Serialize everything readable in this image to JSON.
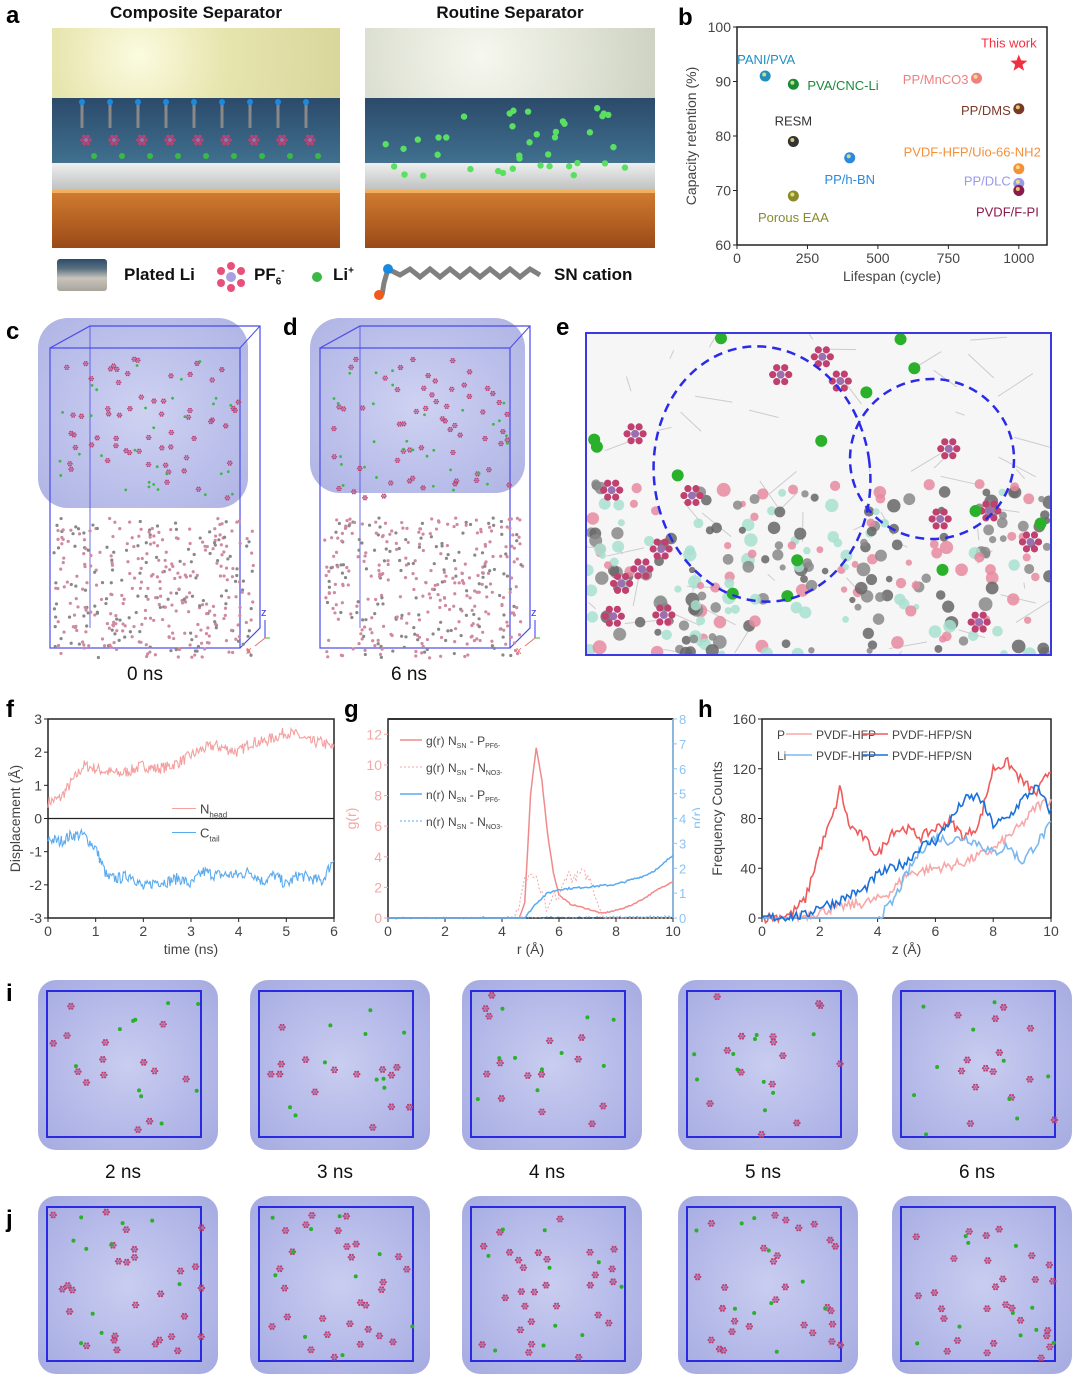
{
  "panels": {
    "a": "a",
    "b": "b",
    "c": "c",
    "d": "d",
    "e": "e",
    "f": "f",
    "g": "g",
    "h": "h",
    "i": "i",
    "j": "j"
  },
  "panel_a": {
    "left_title": "Composite Separator",
    "right_title": "Routine Separator",
    "legend": {
      "plated_li": "Plated Li",
      "pf6": "PF",
      "pf6_sub": "6",
      "pf6_sup": "-",
      "li": "Li",
      "li_sup": "+",
      "sn": "SN cation"
    },
    "colors": {
      "pf6": "#e8507a",
      "li": "#3cb846",
      "sn_n": "#1a8ae0",
      "sn_o": "#f05a1a",
      "chain": "#808080"
    }
  },
  "panel_cd": {
    "c_time": "0 ns",
    "d_time": "6 ns",
    "axes": {
      "z": "z",
      "y": "y",
      "x": "x"
    }
  },
  "snapshots": {
    "i_times": [
      "2 ns",
      "3 ns",
      "4 ns",
      "5 ns",
      "6 ns"
    ]
  },
  "chart_data": [
    {
      "id": "b",
      "type": "scatter",
      "xlabel": "Lifespan (cycle)",
      "ylabel": "Capacity retention (%)",
      "xlim": [
        0,
        1100
      ],
      "ylim": [
        60,
        100
      ],
      "xticks": [
        0,
        250,
        500,
        750,
        1000
      ],
      "yticks": [
        60,
        70,
        80,
        90,
        100
      ],
      "points": [
        {
          "name": "PANI/PVA",
          "x": 100,
          "y": 91,
          "color": "#1f8fc0"
        },
        {
          "name": "PVA/CNC-Li",
          "x": 200,
          "y": 89.5,
          "color": "#1a8a3a"
        },
        {
          "name": "RESM",
          "x": 200,
          "y": 79,
          "color": "#333333"
        },
        {
          "name": "Porous EAA",
          "x": 200,
          "y": 69,
          "color": "#8a8a2a"
        },
        {
          "name": "PP/h-BN",
          "x": 400,
          "y": 76,
          "color": "#2a8ae0"
        },
        {
          "name": "PP/MnCO3",
          "x": 850,
          "y": 90.6,
          "color": "#f08080"
        },
        {
          "name": "This work",
          "x": 1000,
          "y": 93.3,
          "color": "#f03040",
          "marker": "star"
        },
        {
          "name": "PP/DMS",
          "x": 1000,
          "y": 85,
          "color": "#7a3a2a"
        },
        {
          "name": "PVDF-HFP/Uio-66-NH2",
          "x": 1000,
          "y": 74,
          "color": "#f5903a"
        },
        {
          "name": "PP/DLC",
          "x": 1000,
          "y": 71.3,
          "color": "#9a9ae8"
        },
        {
          "name": "PVDF/F-PI",
          "x": 1000,
          "y": 70,
          "color": "#8a1a4a"
        }
      ]
    },
    {
      "id": "f",
      "type": "line",
      "xlabel": "time (ns)",
      "ylabel": "Displacement (Å)",
      "xlim": [
        0,
        6
      ],
      "ylim": [
        -3,
        3
      ],
      "xticks": [
        0,
        1,
        2,
        3,
        4,
        5,
        6
      ],
      "yticks": [
        -3,
        -2,
        -1,
        0,
        1,
        2,
        3
      ],
      "series": [
        {
          "name": "N",
          "sub": "head",
          "color": "#f4a0a0",
          "x": [
            0,
            0.25,
            0.5,
            0.75,
            1,
            1.25,
            1.5,
            1.75,
            2,
            2.25,
            2.5,
            2.75,
            3,
            3.25,
            3.5,
            3.75,
            4,
            4.25,
            4.5,
            4.75,
            5,
            5.25,
            5.5,
            5.75,
            6
          ],
          "y": [
            0.5,
            0.6,
            1.1,
            1.6,
            1.5,
            1.4,
            1.35,
            1.45,
            1.6,
            1.5,
            1.55,
            1.7,
            1.9,
            2.1,
            2.2,
            2.1,
            2.0,
            2.3,
            2.3,
            2.45,
            2.6,
            2.5,
            2.3,
            2.3,
            2.1
          ]
        },
        {
          "name": "C",
          "sub": "tail",
          "color": "#5aaaf0",
          "x": [
            0,
            0.25,
            0.5,
            0.75,
            1,
            1.25,
            1.5,
            1.75,
            2,
            2.25,
            2.5,
            2.75,
            3,
            3.25,
            3.5,
            3.75,
            4,
            4.25,
            4.5,
            4.75,
            5,
            5.25,
            5.5,
            5.75,
            6
          ],
          "y": [
            -0.6,
            -0.7,
            -0.5,
            -0.5,
            -0.9,
            -1.8,
            -1.8,
            -1.7,
            -2.1,
            -1.9,
            -1.9,
            -1.8,
            -2.0,
            -1.6,
            -1.7,
            -1.7,
            -1.7,
            -1.6,
            -1.9,
            -1.7,
            -2.0,
            -1.7,
            -1.8,
            -1.9,
            -1.2
          ]
        }
      ]
    },
    {
      "id": "g",
      "type": "line",
      "xlabel": "r (Å)",
      "ylabel": "g(r)",
      "y2label": "n(r)",
      "xlim": [
        0,
        10
      ],
      "ylim": [
        0,
        13
      ],
      "y2lim": [
        0,
        8
      ],
      "xticks": [
        0,
        2,
        4,
        6,
        8,
        10
      ],
      "yticks": [
        0,
        2,
        4,
        6,
        8,
        10,
        12
      ],
      "y2ticks": [
        0,
        1,
        2,
        3,
        4,
        5,
        6,
        7,
        8
      ],
      "series": [
        {
          "label": [
            "g(r) N",
            "SN",
            " - P",
            "PF6-"
          ],
          "axis": "left",
          "color": "#f08a8a",
          "dash": false,
          "x": [
            0,
            4.6,
            4.8,
            5,
            5.2,
            5.4,
            5.6,
            5.8,
            6,
            6.4,
            7,
            7.5,
            8,
            8.5,
            9,
            9.5,
            10
          ],
          "y": [
            0,
            0,
            1,
            8,
            11.1,
            9,
            5.5,
            3,
            1.5,
            0.9,
            0.6,
            0.3,
            0.5,
            0.8,
            1.3,
            1.9,
            2.4
          ]
        },
        {
          "label": [
            "g(r) N",
            "SN",
            " - N",
            "NO3-"
          ],
          "axis": "left",
          "color": "#f4a8a8",
          "dash": true,
          "x": [
            0,
            4.4,
            4.6,
            4.8,
            5,
            5.2,
            5.4,
            5.6,
            5.8,
            6,
            6.3,
            6.5,
            6.8,
            7.1,
            7.4,
            7.6,
            10
          ],
          "y": [
            0,
            0,
            0.8,
            2.5,
            2.9,
            2.5,
            1.5,
            0.3,
            1.5,
            1.3,
            3,
            2.5,
            3,
            2.5,
            0.8,
            0,
            0
          ]
        },
        {
          "label": [
            "n(r) N",
            "SN",
            " - P",
            "PF6-"
          ],
          "axis": "right",
          "color": "#5aaaf0",
          "dash": false,
          "x": [
            0,
            4.8,
            5.2,
            5.6,
            6,
            7,
            8,
            9,
            9.5,
            10
          ],
          "y": [
            0,
            0,
            0.6,
            1.0,
            1.15,
            1.25,
            1.35,
            1.7,
            2.0,
            2.55
          ]
        },
        {
          "label": [
            "n(r) N",
            "SN",
            " - N",
            "NO3-"
          ],
          "axis": "right",
          "color": "#5aaaf0",
          "dash": true,
          "x": [
            0,
            6,
            10
          ],
          "y": [
            0,
            0.02,
            0.05
          ]
        }
      ]
    },
    {
      "id": "h",
      "type": "line",
      "xlabel": "z (Å)",
      "ylabel": "Frequency Counts",
      "xlim": [
        0,
        10
      ],
      "ylim": [
        0,
        160
      ],
      "xticks": [
        0,
        2,
        4,
        6,
        8,
        10
      ],
      "yticks": [
        0,
        40,
        80,
        120,
        160
      ],
      "legend_rows": [
        "P",
        "Li"
      ],
      "series": [
        {
          "group": "P",
          "name": "PVDF-HFP",
          "color": "#f8a8a8",
          "x": [
            0,
            1,
            1.5,
            2,
            2.5,
            3,
            3.5,
            4,
            4.5,
            5,
            5.5,
            6,
            6.5,
            7,
            7.5,
            8,
            8.5,
            9,
            9.5,
            10
          ],
          "y": [
            0,
            0,
            2,
            5,
            8,
            10,
            12,
            15,
            22,
            35,
            38,
            40,
            42,
            45,
            50,
            55,
            65,
            75,
            90,
            95
          ]
        },
        {
          "group": "P",
          "name": "PVDF-HFP/SN",
          "color": "#f05a5a",
          "x": [
            0,
            0.5,
            1,
            1.5,
            2,
            2.5,
            2.7,
            3,
            3.5,
            4,
            4.5,
            5,
            5.5,
            6,
            6.5,
            7,
            7.5,
            8,
            8.5,
            9,
            9.5,
            10
          ],
          "y": [
            0,
            1,
            3,
            15,
            55,
            85,
            105,
            75,
            65,
            50,
            70,
            72,
            65,
            72,
            78,
            65,
            75,
            120,
            125,
            110,
            100,
            120
          ]
        },
        {
          "group": "Li",
          "name": "PVDF-HFP",
          "color": "#7ab8f0",
          "x": [
            0,
            3,
            4,
            4.5,
            5,
            5.5,
            6,
            6.5,
            7,
            7.5,
            8,
            8.5,
            9,
            9.5,
            10
          ],
          "y": [
            0,
            0,
            0,
            12,
            35,
            55,
            65,
            62,
            65,
            60,
            52,
            58,
            45,
            60,
            75
          ]
        },
        {
          "group": "Li",
          "name": "PVDF-HFP/SN",
          "color": "#1a70d8",
          "x": [
            0,
            1.5,
            2,
            2.5,
            3,
            3.5,
            4,
            4.5,
            5,
            5.5,
            6,
            6.5,
            7,
            7.5,
            8,
            8.5,
            9,
            9.5,
            10
          ],
          "y": [
            0,
            2,
            10,
            12,
            18,
            22,
            35,
            40,
            45,
            58,
            62,
            78,
            95,
            98,
            75,
            80,
            95,
            105,
            85
          ]
        }
      ]
    }
  ]
}
